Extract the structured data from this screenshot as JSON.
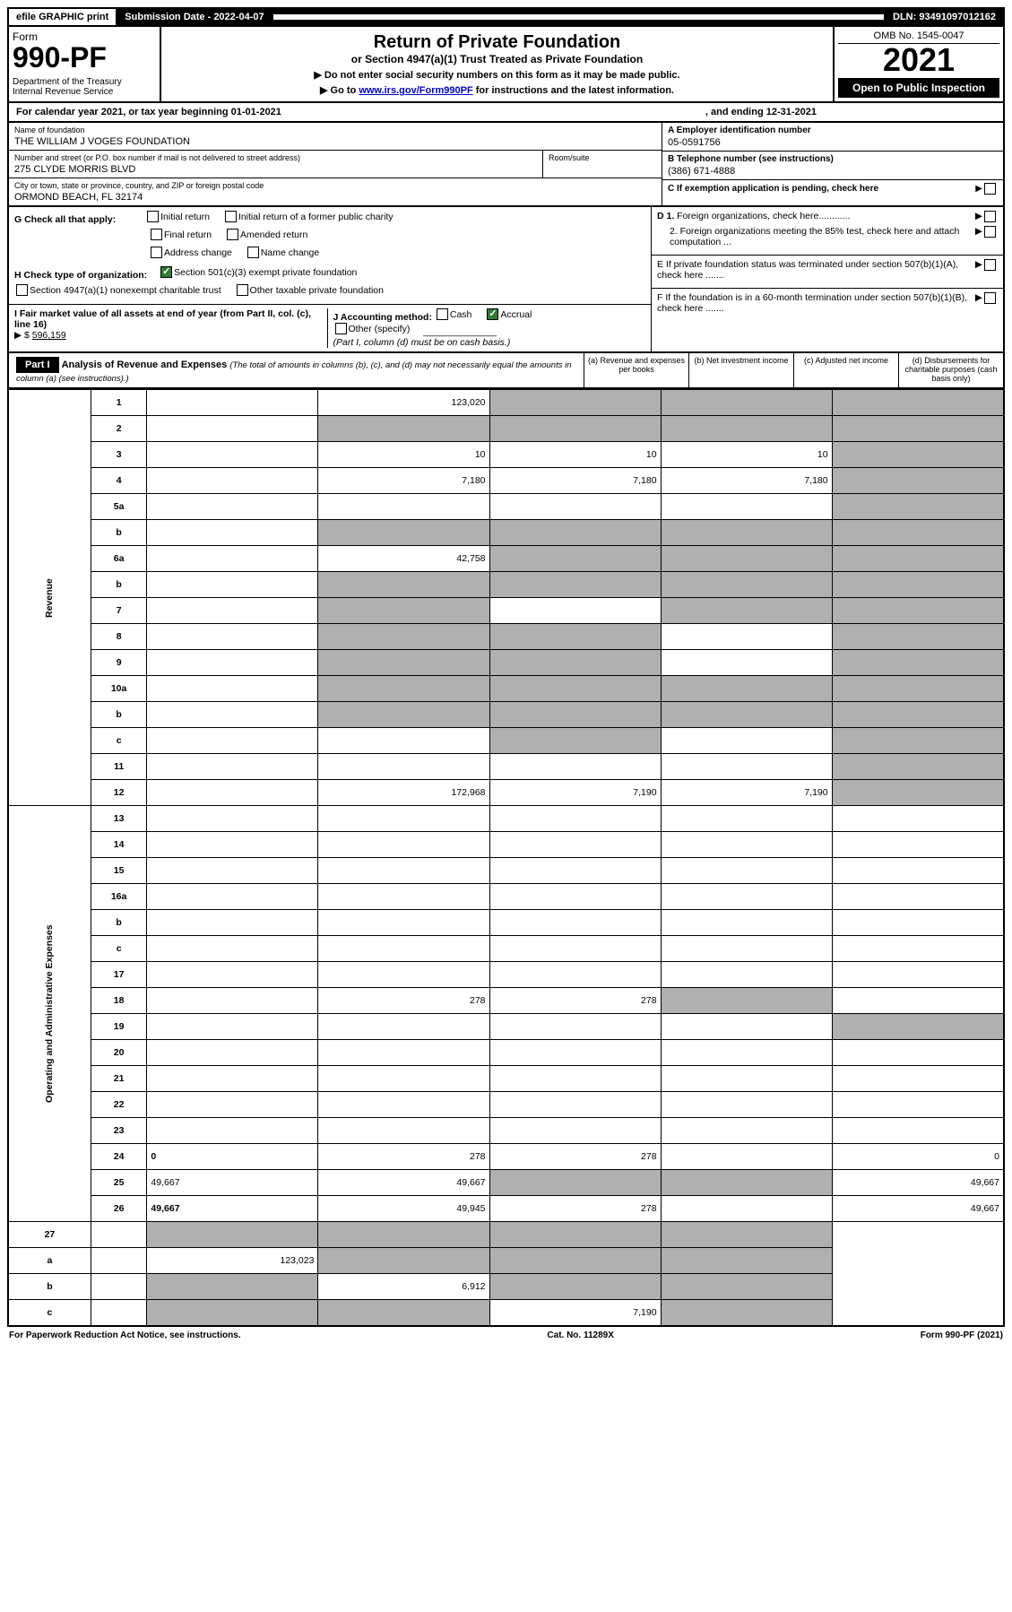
{
  "top_bar": {
    "efile": "efile GRAPHIC print",
    "submission_label": "Submission Date - 2022-04-07",
    "dln": "DLN: 93491097012162"
  },
  "header": {
    "form_label": "Form",
    "form_number": "990-PF",
    "dept": "Department of the Treasury\nInternal Revenue Service",
    "title": "Return of Private Foundation",
    "subtitle": "or Section 4947(a)(1) Trust Treated as Private Foundation",
    "instr1": "▶ Do not enter social security numbers on this form as it may be made public.",
    "instr2_pre": "▶ Go to ",
    "instr2_link": "www.irs.gov/Form990PF",
    "instr2_post": " for instructions and the latest information.",
    "omb": "OMB No. 1545-0047",
    "year": "2021",
    "open": "Open to Public Inspection"
  },
  "calendar": {
    "text_left": "For calendar year 2021, or tax year beginning 01-01-2021",
    "text_right": ", and ending 12-31-2021"
  },
  "identity": {
    "name_label": "Name of foundation",
    "name": "THE WILLIAM J VOGES FOUNDATION",
    "addr_label": "Number and street (or P.O. box number if mail is not delivered to street address)",
    "addr": "275 CLYDE MORRIS BLVD",
    "room_label": "Room/suite",
    "city_label": "City or town, state or province, country, and ZIP or foreign postal code",
    "city": "ORMOND BEACH, FL  32174",
    "ein_label": "A Employer identification number",
    "ein": "05-0591756",
    "tel_label": "B Telephone number (see instructions)",
    "tel": "(386) 671-4888",
    "c_label": "C If exemption application is pending, check here"
  },
  "checks": {
    "g_label": "G Check all that apply:",
    "g_opts": [
      "Initial return",
      "Initial return of a former public charity",
      "Final return",
      "Amended return",
      "Address change",
      "Name change"
    ],
    "h_label": "H Check type of organization:",
    "h1": "Section 501(c)(3) exempt private foundation",
    "h2": "Section 4947(a)(1) nonexempt charitable trust",
    "h3": "Other taxable private foundation",
    "i_label": "I Fair market value of all assets at end of year (from Part II, col. (c), line 16)",
    "i_value": "596,159",
    "j_label": "J Accounting method:",
    "j_cash": "Cash",
    "j_accrual": "Accrual",
    "j_other": "Other (specify)",
    "j_note": "(Part I, column (d) must be on cash basis.)",
    "d1": "D 1. Foreign organizations, check here............",
    "d2": "2. Foreign organizations meeting the 85% test, check here and attach computation ...",
    "e": "E  If private foundation status was terminated under section 507(b)(1)(A), check here .......",
    "f": "F  If the foundation is in a 60-month termination under section 507(b)(1)(B), check here .......",
    "arrow": "▶"
  },
  "part1": {
    "label": "Part I",
    "title": "Analysis of Revenue and Expenses",
    "title_note": "(The total of amounts in columns (b), (c), and (d) may not necessarily equal the amounts in column (a) (see instructions).)",
    "col_a": "(a) Revenue and expenses per books",
    "col_b": "(b) Net investment income",
    "col_c": "(c) Adjusted net income",
    "col_d": "(d) Disbursements for charitable purposes (cash basis only)"
  },
  "side_labels": {
    "revenue": "Revenue",
    "expenses": "Operating and Administrative Expenses"
  },
  "rows": [
    {
      "n": "1",
      "d": "",
      "a": "123,020",
      "b": "",
      "c": "",
      "grey": [
        "b",
        "c",
        "d"
      ]
    },
    {
      "n": "2",
      "d": "",
      "a": "",
      "b": "",
      "c": "",
      "grey": [
        "a",
        "b",
        "c",
        "d"
      ]
    },
    {
      "n": "3",
      "d": "",
      "a": "10",
      "b": "10",
      "c": "10",
      "grey": [
        "d"
      ]
    },
    {
      "n": "4",
      "d": "",
      "a": "7,180",
      "b": "7,180",
      "c": "7,180",
      "grey": [
        "d"
      ]
    },
    {
      "n": "5a",
      "d": "",
      "a": "",
      "b": "",
      "c": "",
      "grey": [
        "d"
      ]
    },
    {
      "n": "b",
      "d": "",
      "a": "",
      "b": "",
      "c": "",
      "grey": [
        "a",
        "b",
        "c",
        "d"
      ]
    },
    {
      "n": "6a",
      "d": "",
      "a": "42,758",
      "b": "",
      "c": "",
      "grey": [
        "b",
        "c",
        "d"
      ]
    },
    {
      "n": "b",
      "d": "",
      "a": "",
      "b": "",
      "c": "",
      "grey": [
        "a",
        "b",
        "c",
        "d"
      ]
    },
    {
      "n": "7",
      "d": "",
      "a": "",
      "b": "",
      "c": "",
      "grey": [
        "a",
        "c",
        "d"
      ]
    },
    {
      "n": "8",
      "d": "",
      "a": "",
      "b": "",
      "c": "",
      "grey": [
        "a",
        "b",
        "d"
      ]
    },
    {
      "n": "9",
      "d": "",
      "a": "",
      "b": "",
      "c": "",
      "grey": [
        "a",
        "b",
        "d"
      ]
    },
    {
      "n": "10a",
      "d": "",
      "a": "",
      "b": "",
      "c": "",
      "grey": [
        "a",
        "b",
        "c",
        "d"
      ]
    },
    {
      "n": "b",
      "d": "",
      "a": "",
      "b": "",
      "c": "",
      "grey": [
        "a",
        "b",
        "c",
        "d"
      ]
    },
    {
      "n": "c",
      "d": "",
      "a": "",
      "b": "",
      "c": "",
      "grey": [
        "b",
        "d"
      ]
    },
    {
      "n": "11",
      "d": "",
      "a": "",
      "b": "",
      "c": "",
      "grey": [
        "d"
      ]
    },
    {
      "n": "12",
      "d": "",
      "a": "172,968",
      "b": "7,190",
      "c": "7,190",
      "grey": [
        "d"
      ],
      "bold": true
    }
  ],
  "exp_rows": [
    {
      "n": "13",
      "d": "",
      "a": "",
      "b": "",
      "c": ""
    },
    {
      "n": "14",
      "d": "",
      "a": "",
      "b": "",
      "c": ""
    },
    {
      "n": "15",
      "d": "",
      "a": "",
      "b": "",
      "c": ""
    },
    {
      "n": "16a",
      "d": "",
      "a": "",
      "b": "",
      "c": ""
    },
    {
      "n": "b",
      "d": "",
      "a": "",
      "b": "",
      "c": ""
    },
    {
      "n": "c",
      "d": "",
      "a": "",
      "b": "",
      "c": ""
    },
    {
      "n": "17",
      "d": "",
      "a": "",
      "b": "",
      "c": ""
    },
    {
      "n": "18",
      "d": "",
      "a": "278",
      "b": "278",
      "c": "",
      "grey": [
        "c"
      ]
    },
    {
      "n": "19",
      "d": "",
      "a": "",
      "b": "",
      "c": "",
      "grey": [
        "d"
      ]
    },
    {
      "n": "20",
      "d": "",
      "a": "",
      "b": "",
      "c": ""
    },
    {
      "n": "21",
      "d": "",
      "a": "",
      "b": "",
      "c": ""
    },
    {
      "n": "22",
      "d": "",
      "a": "",
      "b": "",
      "c": ""
    },
    {
      "n": "23",
      "d": "",
      "a": "",
      "b": "",
      "c": ""
    },
    {
      "n": "24",
      "d": "0",
      "a": "278",
      "b": "278",
      "c": "",
      "bold": true
    },
    {
      "n": "25",
      "d": "49,667",
      "a": "49,667",
      "b": "",
      "c": "",
      "grey": [
        "b",
        "c"
      ]
    },
    {
      "n": "26",
      "d": "49,667",
      "a": "49,945",
      "b": "278",
      "c": "",
      "bold": true
    }
  ],
  "bottom_rows": [
    {
      "n": "27",
      "d": "",
      "a": "",
      "b": "",
      "c": "",
      "grey": [
        "a",
        "b",
        "c",
        "d"
      ]
    },
    {
      "n": "a",
      "d": "",
      "a": "123,023",
      "b": "",
      "c": "",
      "grey": [
        "b",
        "c",
        "d"
      ],
      "bold": true
    },
    {
      "n": "b",
      "d": "",
      "a": "",
      "b": "6,912",
      "c": "",
      "grey": [
        "a",
        "c",
        "d"
      ],
      "bold": true
    },
    {
      "n": "c",
      "d": "",
      "a": "",
      "b": "",
      "c": "7,190",
      "grey": [
        "a",
        "b",
        "d"
      ],
      "bold": true
    }
  ],
  "footer": {
    "left": "For Paperwork Reduction Act Notice, see instructions.",
    "center": "Cat. No. 11289X",
    "right": "Form 990-PF (2021)"
  }
}
